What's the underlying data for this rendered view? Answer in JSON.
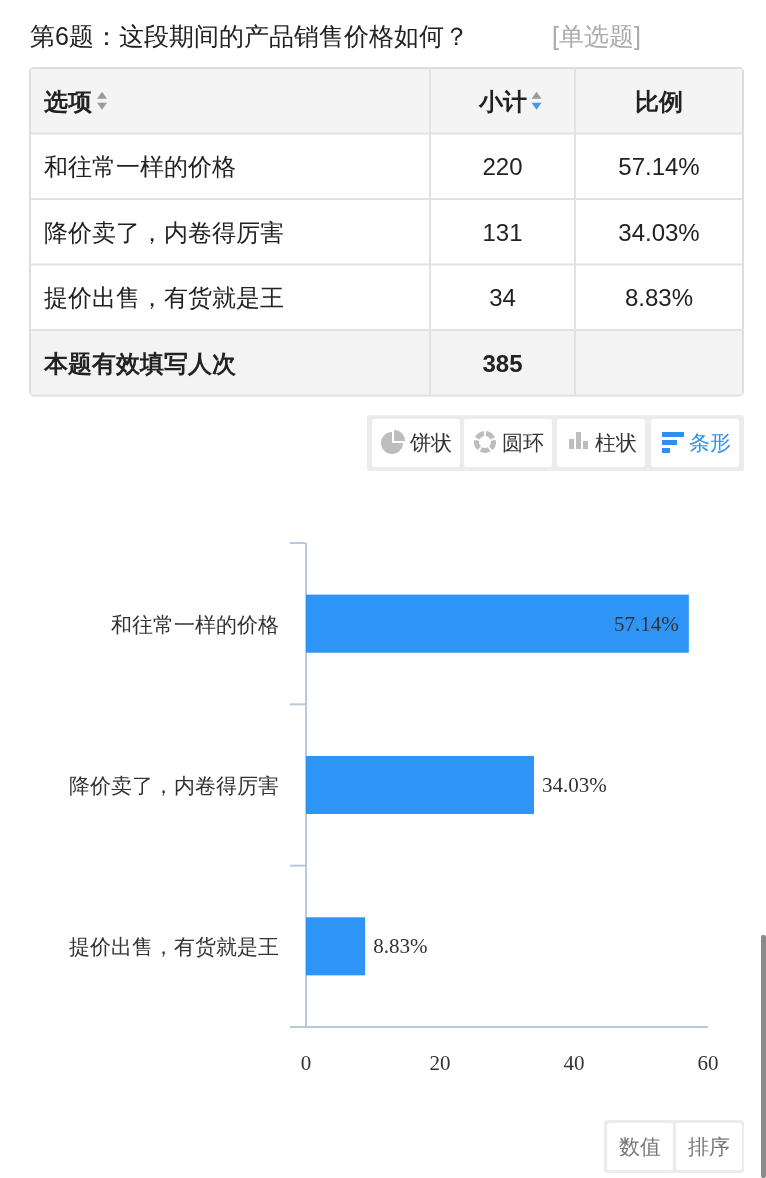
{
  "chart_data": [
    {
      "type": "other",
      "title": "第6题：这段期间的产品销售价格如何？",
      "subtitle": "[单选题]",
      "categories": [
        "和往常一样的价格",
        "降价卖了，内卷得厉害",
        "提价出售，有货就是王"
      ],
      "data_labels": true,
      "series": [
        {
          "name": "小计",
          "values": [
            220,
            131,
            34
          ]
        },
        {
          "name": "比例",
          "values": [
            57.14,
            34.03,
            8.83
          ],
          "value_labels": [
            "57.14%",
            "34.03%",
            "8.83%"
          ]
        }
      ],
      "annotations": [
        "选项",
        "本题有效填写人次",
        "385"
      ]
    },
    {
      "type": "bar",
      "orientation": "horizontal",
      "categories": [
        "和往常一样的价格",
        "降价卖了，内卷得厉害",
        "提价出售，有货就是王"
      ],
      "values": [
        57.14,
        34.03,
        8.83
      ],
      "color": "#2e95f6",
      "xlim": [
        0,
        60
      ],
      "xticks": [
        0,
        20,
        40,
        60
      ],
      "value_labels": [
        "57.14%",
        "34.03%",
        "8.83%"
      ],
      "annotations": [
        "饼状",
        "圆环",
        "柱状",
        "条形",
        "数值",
        "排序"
      ]
    }
  ]
}
